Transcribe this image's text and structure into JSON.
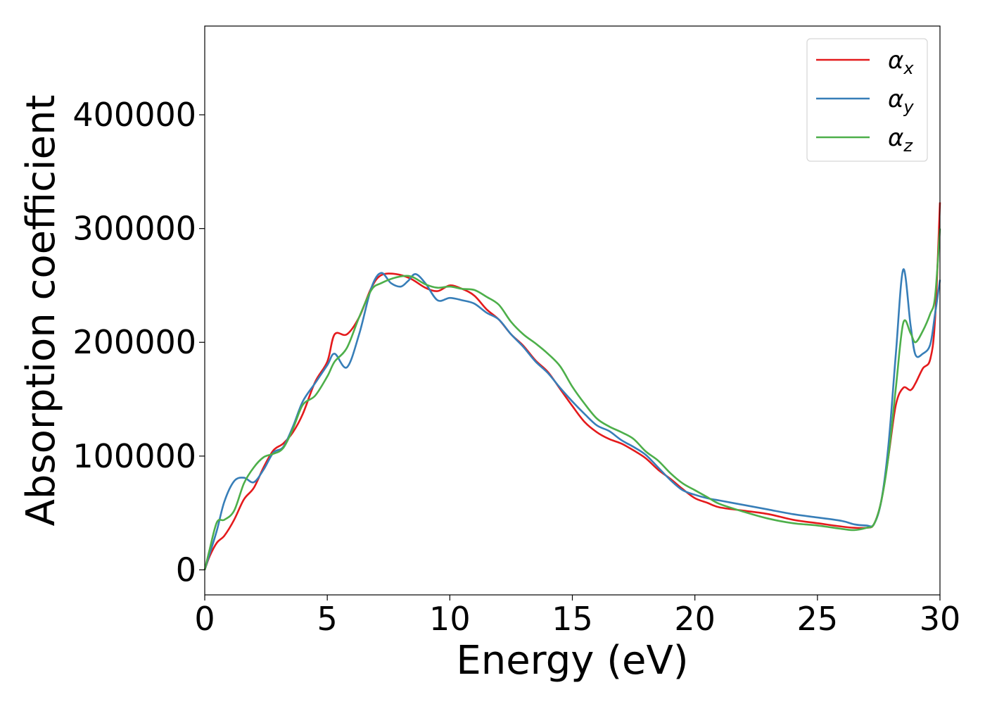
{
  "chart_data": {
    "type": "line",
    "title": "",
    "xlabel": "Energy (eV)",
    "ylabel": "Absorption coefficient",
    "xlim": [
      0,
      30
    ],
    "ylim": [
      -22000,
      478000
    ],
    "xticks": [
      0,
      5,
      10,
      15,
      20,
      25,
      30
    ],
    "yticks": [
      0,
      100000,
      200000,
      300000,
      400000
    ],
    "grid": false,
    "legend_position": "top-right",
    "series": [
      {
        "name": "α",
        "subscript": "x",
        "color": "#e41a1c",
        "x": [
          0,
          0.2,
          0.5,
          0.8,
          1.2,
          1.6,
          2.0,
          2.4,
          2.8,
          3.2,
          3.6,
          4.0,
          4.5,
          5.0,
          5.3,
          5.8,
          6.3,
          6.8,
          7.2,
          7.8,
          8.4,
          9.0,
          9.5,
          10.0,
          10.5,
          11.0,
          11.5,
          12.0,
          12.5,
          13.0,
          13.5,
          14.0,
          14.5,
          15.0,
          15.5,
          16.0,
          16.5,
          17.0,
          17.5,
          18.0,
          18.5,
          19.0,
          19.5,
          20.0,
          20.5,
          21.0,
          22.0,
          23.0,
          24.0,
          25.0,
          26.0,
          26.5,
          27.0,
          27.3,
          27.6,
          27.9,
          28.2,
          28.5,
          28.8,
          29.0,
          29.3,
          29.6,
          29.8,
          30.0
        ],
        "y": [
          0,
          12000,
          24000,
          30000,
          44000,
          62000,
          72000,
          90000,
          105000,
          111000,
          121000,
          137000,
          165000,
          183000,
          207000,
          207000,
          222000,
          248000,
          259000,
          260000,
          256000,
          248000,
          245000,
          250000,
          247000,
          241000,
          229000,
          220000,
          207000,
          197000,
          184000,
          174000,
          159000,
          144000,
          130000,
          121000,
          115000,
          111000,
          105000,
          98000,
          88000,
          80000,
          71000,
          63000,
          59000,
          55000,
          52000,
          49000,
          44000,
          41000,
          38000,
          37000,
          37000,
          40000,
          60000,
          100000,
          145000,
          160000,
          158000,
          164000,
          177000,
          185000,
          220000,
          323000
        ]
      },
      {
        "name": "α",
        "subscript": "y",
        "color": "#377eb8",
        "x": [
          0,
          0.2,
          0.5,
          0.8,
          1.2,
          1.6,
          2.0,
          2.4,
          2.8,
          3.2,
          3.6,
          4.0,
          4.5,
          5.0,
          5.3,
          5.8,
          6.3,
          6.8,
          7.2,
          7.6,
          8.0,
          8.3,
          8.6,
          9.0,
          9.5,
          10.0,
          10.5,
          11.0,
          11.5,
          12.0,
          12.5,
          13.0,
          13.5,
          14.0,
          14.5,
          15.0,
          15.5,
          16.0,
          16.5,
          17.0,
          17.5,
          18.0,
          18.5,
          19.0,
          19.5,
          20.0,
          20.5,
          21.0,
          22.0,
          23.0,
          24.0,
          25.0,
          26.0,
          26.5,
          27.0,
          27.3,
          27.6,
          27.9,
          28.2,
          28.5,
          28.8,
          29.0,
          29.3,
          29.6,
          29.8,
          30.0
        ],
        "y": [
          0,
          14000,
          35000,
          60000,
          78000,
          81000,
          77000,
          88000,
          103000,
          108000,
          126000,
          148000,
          164000,
          180000,
          190000,
          178000,
          207000,
          248000,
          261000,
          252000,
          249000,
          254000,
          260000,
          252000,
          237000,
          239000,
          237000,
          234000,
          226000,
          220000,
          207000,
          196000,
          183000,
          173000,
          160000,
          148000,
          137000,
          127000,
          122000,
          114000,
          108000,
          101000,
          90000,
          79000,
          70000,
          66000,
          63000,
          61000,
          57000,
          53000,
          49000,
          46000,
          43000,
          40000,
          39000,
          40000,
          60000,
          110000,
          190000,
          264000,
          215000,
          189000,
          190000,
          198000,
          225000,
          255000
        ]
      },
      {
        "name": "α",
        "subscript": "z",
        "color": "#4daf4a",
        "x": [
          0,
          0.2,
          0.5,
          0.8,
          1.2,
          1.6,
          2.0,
          2.4,
          2.8,
          3.2,
          3.6,
          4.0,
          4.5,
          5.0,
          5.3,
          5.8,
          6.3,
          6.8,
          7.2,
          7.8,
          8.4,
          9.0,
          9.5,
          10.0,
          10.5,
          11.0,
          11.5,
          12.0,
          12.5,
          13.0,
          13.5,
          14.0,
          14.5,
          15.0,
          15.5,
          16.0,
          16.5,
          17.0,
          17.5,
          18.0,
          18.5,
          19.0,
          19.5,
          20.0,
          20.5,
          21.0,
          22.0,
          23.0,
          24.0,
          25.0,
          26.0,
          26.5,
          27.0,
          27.3,
          27.6,
          27.9,
          28.2,
          28.5,
          28.8,
          29.0,
          29.3,
          29.6,
          29.8,
          30.0
        ],
        "y": [
          0,
          18000,
          42000,
          44000,
          52000,
          76000,
          90000,
          99000,
          102000,
          107000,
          124000,
          145000,
          153000,
          170000,
          183000,
          195000,
          222000,
          246000,
          252000,
          257000,
          258000,
          251000,
          248000,
          249000,
          247000,
          246000,
          240000,
          233000,
          218000,
          207000,
          199000,
          190000,
          179000,
          161000,
          146000,
          133000,
          126000,
          121000,
          115000,
          104000,
          96000,
          85000,
          76000,
          70000,
          64000,
          58000,
          51000,
          45000,
          41000,
          39000,
          36000,
          35000,
          37000,
          40000,
          60000,
          100000,
          160000,
          217000,
          208000,
          200000,
          210000,
          225000,
          240000,
          300000
        ]
      }
    ]
  }
}
